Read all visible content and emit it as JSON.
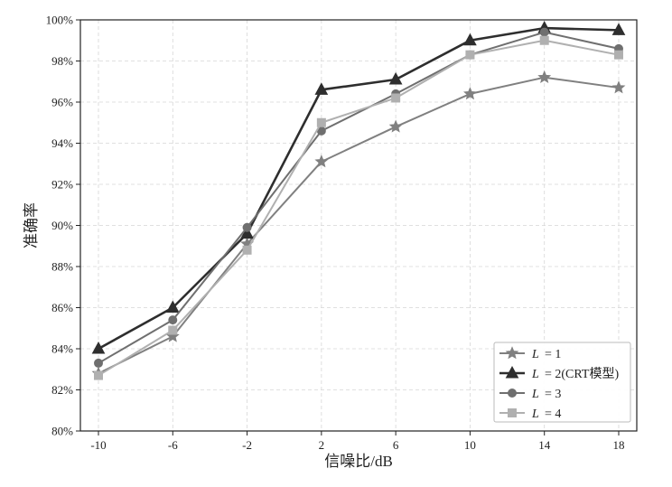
{
  "chart_data": {
    "type": "line",
    "title": "",
    "xlabel": "信噪比/dB",
    "ylabel": "准确率",
    "categories": [
      "-10",
      "-6",
      "-2",
      "2",
      "6",
      "10",
      "14",
      "18"
    ],
    "x": [
      -10,
      -6,
      -2,
      2,
      6,
      10,
      14,
      18
    ],
    "xlim": [
      -10,
      18
    ],
    "ylim": [
      80,
      100
    ],
    "yticks": [
      80,
      82,
      84,
      86,
      88,
      90,
      92,
      94,
      96,
      98,
      100
    ],
    "ytick_labels": [
      "80%",
      "82%",
      "84%",
      "86%",
      "88%",
      "90%",
      "92%",
      "94%",
      "96%",
      "98%",
      "100%"
    ],
    "grid": true,
    "legend_position": "lower-right",
    "series": [
      {
        "legend_var": "L",
        "legend_rest": "= 1",
        "marker": "star",
        "color": "#808080",
        "width": 2,
        "values": [
          82.8,
          84.6,
          89.1,
          93.1,
          94.8,
          96.4,
          97.2,
          96.7
        ]
      },
      {
        "legend_var": "L",
        "legend_rest": "= 2(CRT模型)",
        "marker": "triangle",
        "color": "#2e2e2e",
        "width": 2.6,
        "values": [
          84.0,
          86.0,
          89.6,
          96.6,
          97.1,
          99.0,
          99.6,
          99.5
        ]
      },
      {
        "legend_var": "L",
        "legend_rest": "= 3",
        "marker": "circle",
        "color": "#6f6f6f",
        "width": 2,
        "values": [
          83.3,
          85.4,
          89.9,
          94.6,
          96.4,
          98.3,
          99.4,
          98.6
        ]
      },
      {
        "legend_var": "L",
        "legend_rest": "= 4",
        "marker": "square",
        "color": "#b0b0b0",
        "width": 2,
        "values": [
          82.7,
          84.9,
          88.8,
          95.0,
          96.2,
          98.3,
          99.0,
          98.3
        ]
      }
    ]
  }
}
